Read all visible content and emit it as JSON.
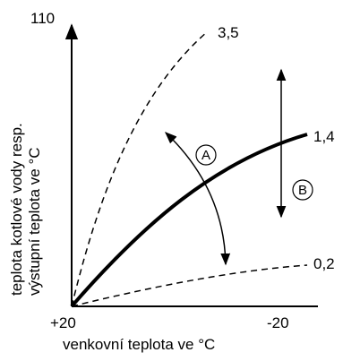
{
  "axes": {
    "y_max_label": "110",
    "y_title_line1": "teplota kotlové vody resp.",
    "y_title_line2": "výstupní teplota ve °C",
    "x_left_label": "+20",
    "x_right_label": "-20",
    "x_title": "venkovní teplota ve °C"
  },
  "curves": [
    {
      "label": "3,5",
      "style": "dashed"
    },
    {
      "label": "1,4",
      "style": "solid-bold"
    },
    {
      "label": "0,2",
      "style": "dashed"
    }
  ],
  "markers": {
    "a": "A",
    "b": "B"
  }
}
